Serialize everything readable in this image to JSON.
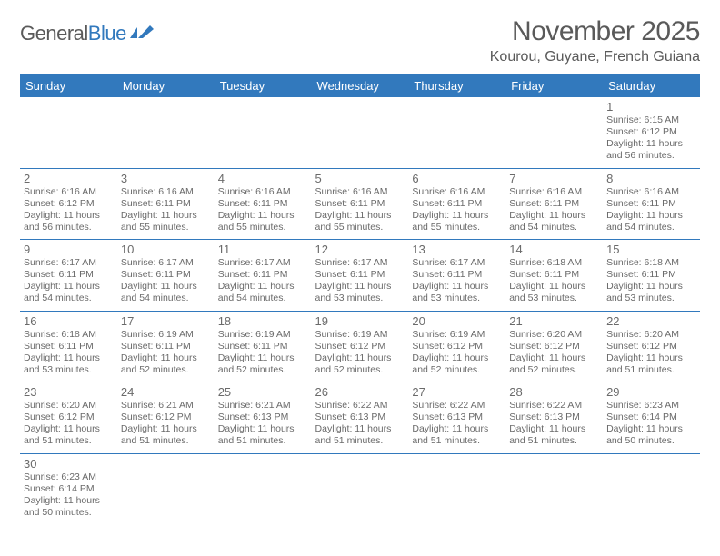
{
  "brand": {
    "part1": "General",
    "part2": "Blue"
  },
  "title": "November 2025",
  "location": "Kourou, Guyane, French Guiana",
  "header_bg": "#3279bd",
  "header_fg": "#ffffff",
  "border_color": "#3279bd",
  "text_color": "#6a6a6a",
  "weekdays": [
    "Sunday",
    "Monday",
    "Tuesday",
    "Wednesday",
    "Thursday",
    "Friday",
    "Saturday"
  ],
  "weeks": [
    [
      null,
      null,
      null,
      null,
      null,
      null,
      {
        "n": "1",
        "sr": "Sunrise: 6:15 AM",
        "ss": "Sunset: 6:12 PM",
        "dl": "Daylight: 11 hours and 56 minutes."
      }
    ],
    [
      {
        "n": "2",
        "sr": "Sunrise: 6:16 AM",
        "ss": "Sunset: 6:12 PM",
        "dl": "Daylight: 11 hours and 56 minutes."
      },
      {
        "n": "3",
        "sr": "Sunrise: 6:16 AM",
        "ss": "Sunset: 6:11 PM",
        "dl": "Daylight: 11 hours and 55 minutes."
      },
      {
        "n": "4",
        "sr": "Sunrise: 6:16 AM",
        "ss": "Sunset: 6:11 PM",
        "dl": "Daylight: 11 hours and 55 minutes."
      },
      {
        "n": "5",
        "sr": "Sunrise: 6:16 AM",
        "ss": "Sunset: 6:11 PM",
        "dl": "Daylight: 11 hours and 55 minutes."
      },
      {
        "n": "6",
        "sr": "Sunrise: 6:16 AM",
        "ss": "Sunset: 6:11 PM",
        "dl": "Daylight: 11 hours and 55 minutes."
      },
      {
        "n": "7",
        "sr": "Sunrise: 6:16 AM",
        "ss": "Sunset: 6:11 PM",
        "dl": "Daylight: 11 hours and 54 minutes."
      },
      {
        "n": "8",
        "sr": "Sunrise: 6:16 AM",
        "ss": "Sunset: 6:11 PM",
        "dl": "Daylight: 11 hours and 54 minutes."
      }
    ],
    [
      {
        "n": "9",
        "sr": "Sunrise: 6:17 AM",
        "ss": "Sunset: 6:11 PM",
        "dl": "Daylight: 11 hours and 54 minutes."
      },
      {
        "n": "10",
        "sr": "Sunrise: 6:17 AM",
        "ss": "Sunset: 6:11 PM",
        "dl": "Daylight: 11 hours and 54 minutes."
      },
      {
        "n": "11",
        "sr": "Sunrise: 6:17 AM",
        "ss": "Sunset: 6:11 PM",
        "dl": "Daylight: 11 hours and 54 minutes."
      },
      {
        "n": "12",
        "sr": "Sunrise: 6:17 AM",
        "ss": "Sunset: 6:11 PM",
        "dl": "Daylight: 11 hours and 53 minutes."
      },
      {
        "n": "13",
        "sr": "Sunrise: 6:17 AM",
        "ss": "Sunset: 6:11 PM",
        "dl": "Daylight: 11 hours and 53 minutes."
      },
      {
        "n": "14",
        "sr": "Sunrise: 6:18 AM",
        "ss": "Sunset: 6:11 PM",
        "dl": "Daylight: 11 hours and 53 minutes."
      },
      {
        "n": "15",
        "sr": "Sunrise: 6:18 AM",
        "ss": "Sunset: 6:11 PM",
        "dl": "Daylight: 11 hours and 53 minutes."
      }
    ],
    [
      {
        "n": "16",
        "sr": "Sunrise: 6:18 AM",
        "ss": "Sunset: 6:11 PM",
        "dl": "Daylight: 11 hours and 53 minutes."
      },
      {
        "n": "17",
        "sr": "Sunrise: 6:19 AM",
        "ss": "Sunset: 6:11 PM",
        "dl": "Daylight: 11 hours and 52 minutes."
      },
      {
        "n": "18",
        "sr": "Sunrise: 6:19 AM",
        "ss": "Sunset: 6:11 PM",
        "dl": "Daylight: 11 hours and 52 minutes."
      },
      {
        "n": "19",
        "sr": "Sunrise: 6:19 AM",
        "ss": "Sunset: 6:12 PM",
        "dl": "Daylight: 11 hours and 52 minutes."
      },
      {
        "n": "20",
        "sr": "Sunrise: 6:19 AM",
        "ss": "Sunset: 6:12 PM",
        "dl": "Daylight: 11 hours and 52 minutes."
      },
      {
        "n": "21",
        "sr": "Sunrise: 6:20 AM",
        "ss": "Sunset: 6:12 PM",
        "dl": "Daylight: 11 hours and 52 minutes."
      },
      {
        "n": "22",
        "sr": "Sunrise: 6:20 AM",
        "ss": "Sunset: 6:12 PM",
        "dl": "Daylight: 11 hours and 51 minutes."
      }
    ],
    [
      {
        "n": "23",
        "sr": "Sunrise: 6:20 AM",
        "ss": "Sunset: 6:12 PM",
        "dl": "Daylight: 11 hours and 51 minutes."
      },
      {
        "n": "24",
        "sr": "Sunrise: 6:21 AM",
        "ss": "Sunset: 6:12 PM",
        "dl": "Daylight: 11 hours and 51 minutes."
      },
      {
        "n": "25",
        "sr": "Sunrise: 6:21 AM",
        "ss": "Sunset: 6:13 PM",
        "dl": "Daylight: 11 hours and 51 minutes."
      },
      {
        "n": "26",
        "sr": "Sunrise: 6:22 AM",
        "ss": "Sunset: 6:13 PM",
        "dl": "Daylight: 11 hours and 51 minutes."
      },
      {
        "n": "27",
        "sr": "Sunrise: 6:22 AM",
        "ss": "Sunset: 6:13 PM",
        "dl": "Daylight: 11 hours and 51 minutes."
      },
      {
        "n": "28",
        "sr": "Sunrise: 6:22 AM",
        "ss": "Sunset: 6:13 PM",
        "dl": "Daylight: 11 hours and 51 minutes."
      },
      {
        "n": "29",
        "sr": "Sunrise: 6:23 AM",
        "ss": "Sunset: 6:14 PM",
        "dl": "Daylight: 11 hours and 50 minutes."
      }
    ],
    [
      {
        "n": "30",
        "sr": "Sunrise: 6:23 AM",
        "ss": "Sunset: 6:14 PM",
        "dl": "Daylight: 11 hours and 50 minutes."
      },
      null,
      null,
      null,
      null,
      null,
      null
    ]
  ]
}
